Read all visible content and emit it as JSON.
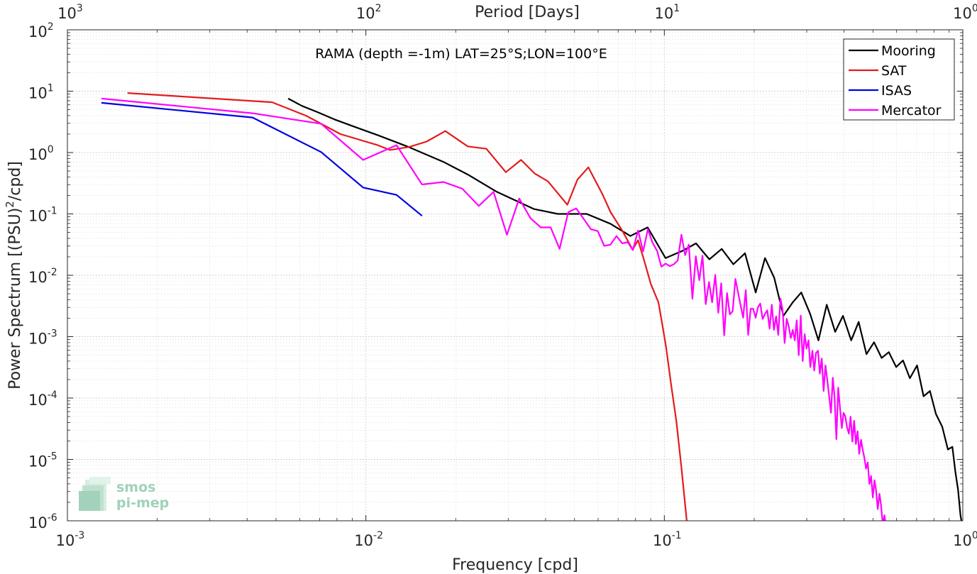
{
  "chart_data": {
    "type": "line",
    "title": "RAMA (depth =-1m) LAT=25°S;LON=100°E",
    "xlabel": "Frequency [cpd]",
    "ylabel": "Power Spectrum [(PSU)",
    "ylabel_sup": "2",
    "ylabel_suffix": "/cpd]",
    "top_xlabel": "Period [Days]",
    "xscale": "log",
    "yscale": "log",
    "xlim": [
      0.001,
      1
    ],
    "ylim": [
      1e-06,
      100
    ],
    "grid": true,
    "minor_grid": true,
    "legend_position": "top-right",
    "x_ticks": [
      {
        "value": 0.001,
        "base": "10",
        "exp": "-3"
      },
      {
        "value": 0.01,
        "base": "10",
        "exp": "-2"
      },
      {
        "value": 0.1,
        "base": "10",
        "exp": "-1"
      },
      {
        "value": 1,
        "base": "10",
        "exp": "0"
      }
    ],
    "top_ticks": [
      {
        "value": 0.001,
        "base": "10",
        "exp": "3"
      },
      {
        "value": 0.01,
        "base": "10",
        "exp": "2"
      },
      {
        "value": 0.1,
        "base": "10",
        "exp": "1"
      },
      {
        "value": 1,
        "base": "10",
        "exp": "0"
      }
    ],
    "y_ticks": [
      {
        "value": 100,
        "base": "10",
        "exp": "2"
      },
      {
        "value": 10,
        "base": "10",
        "exp": "1"
      },
      {
        "value": 1,
        "base": "10",
        "exp": "0"
      },
      {
        "value": 0.1,
        "base": "10",
        "exp": "-1"
      },
      {
        "value": 0.01,
        "base": "10",
        "exp": "-2"
      },
      {
        "value": 0.001,
        "base": "10",
        "exp": "-3"
      },
      {
        "value": 0.0001,
        "base": "10",
        "exp": "-4"
      },
      {
        "value": 1e-05,
        "base": "10",
        "exp": "-5"
      },
      {
        "value": 1e-06,
        "base": "10",
        "exp": "-6"
      }
    ],
    "series": [
      {
        "name": "Mooring",
        "color": "#000000",
        "points": [
          [
            0.00549,
            7.58
          ],
          [
            0.00611,
            5.75
          ],
          [
            0.00687,
            4.57
          ],
          [
            0.00785,
            3.47
          ],
          [
            0.00916,
            2.63
          ],
          [
            0.01099,
            1.91
          ],
          [
            0.01374,
            1.26
          ],
          [
            0.01832,
            0.692
          ],
          [
            0.02198,
            0.437
          ],
          [
            0.02748,
            0.229
          ],
          [
            0.03664,
            0.12
          ],
          [
            0.04396,
            0.1
          ],
          [
            0.05495,
            0.1
          ],
          [
            0.06593,
            0.0692
          ],
          [
            0.07692,
            0.0437
          ],
          [
            0.08791,
            0.0603
          ],
          [
            0.1009,
            0.0191
          ],
          [
            0.1152,
            0.0251
          ],
          [
            0.1277,
            0.0331
          ],
          [
            0.1415,
            0.0182
          ],
          [
            0.1557,
            0.0269
          ],
          [
            0.1703,
            0.0151
          ],
          [
            0.1863,
            0.0229
          ],
          [
            0.2024,
            0.00525
          ],
          [
            0.2174,
            0.0191
          ],
          [
            0.2334,
            0.00912
          ],
          [
            0.2507,
            0.00219
          ],
          [
            0.2692,
            0.00363
          ],
          [
            0.2876,
            0.00525
          ],
          [
            0.3081,
            0.00234
          ],
          [
            0.3282,
            0.00087
          ],
          [
            0.3499,
            0.00331
          ],
          [
            0.3735,
            0.0012
          ],
          [
            0.3968,
            0.00219
          ],
          [
            0.4227,
            0.00087
          ],
          [
            0.4477,
            0.00174
          ],
          [
            0.4755,
            0.00052
          ],
          [
            0.5042,
            0.00081
          ],
          [
            0.5347,
            0.00045
          ],
          [
            0.5651,
            0.00056
          ],
          [
            0.5981,
            0.00032
          ],
          [
            0.6304,
            0.00041
          ],
          [
            0.6649,
            0.00021
          ],
          [
            0.7027,
            0.00034
          ],
          [
            0.7387,
            0.000107
          ],
          [
            0.776,
            0.00013
          ],
          [
            0.8128,
            5.5e-05
          ],
          [
            0.8531,
            3.4e-05
          ],
          [
            0.8913,
            1.45e-05
          ],
          [
            0.9226,
            1.6e-05
          ],
          [
            0.9441,
            6.3e-06
          ],
          [
            0.9638,
            3.2e-06
          ],
          [
            0.9821,
            1.23e-06
          ],
          [
            1.0,
            7.4e-07
          ]
        ]
      },
      {
        "name": "SAT",
        "color": "#e41a1c",
        "points": [
          [
            0.00159,
            9.33
          ],
          [
            0.00485,
            6.61
          ],
          [
            0.00631,
            3.98
          ],
          [
            0.00822,
            2.0
          ],
          [
            0.01096,
            1.32
          ],
          [
            0.01203,
            1.1
          ],
          [
            0.01396,
            1.23
          ],
          [
            0.01598,
            1.51
          ],
          [
            0.01845,
            2.24
          ],
          [
            0.02194,
            1.26
          ],
          [
            0.02533,
            1.15
          ],
          [
            0.02944,
            0.479
          ],
          [
            0.03311,
            0.759
          ],
          [
            0.03673,
            0.457
          ],
          [
            0.04075,
            0.339
          ],
          [
            0.04732,
            0.141
          ],
          [
            0.05117,
            0.363
          ],
          [
            0.05562,
            0.575
          ],
          [
            0.06202,
            0.209
          ],
          [
            0.06607,
            0.107
          ],
          [
            0.07244,
            0.0525
          ],
          [
            0.07828,
            0.0263
          ],
          [
            0.08166,
            0.0372
          ],
          [
            0.08597,
            0.0162
          ],
          [
            0.09009,
            0.0072
          ],
          [
            0.09552,
            0.00363
          ],
          [
            0.09842,
            0.00159
          ],
          [
            0.10139,
            0.00066
          ],
          [
            0.10544,
            0.000162
          ],
          [
            0.10965,
            4.27e-05
          ],
          [
            0.11402,
            7.59e-06
          ],
          [
            0.11885,
            1e-06
          ],
          [
            0.12,
            6.9e-07
          ]
        ]
      },
      {
        "name": "ISAS",
        "color": "#0000e6",
        "points": [
          [
            0.0013,
            6.46
          ],
          [
            0.00417,
            3.72
          ],
          [
            0.00708,
            1.02
          ],
          [
            0.00979,
            0.269
          ],
          [
            0.01267,
            0.204
          ],
          [
            0.01542,
            0.093
          ]
        ]
      },
      {
        "name": "Mercator",
        "color": "#ff00ff",
        "points": [
          [
            0.0013,
            7.59
          ],
          [
            0.00417,
            4.37
          ],
          [
            0.00708,
            2.95
          ],
          [
            0.00979,
            0.759
          ],
          [
            0.01267,
            1.32
          ],
          [
            0.01542,
            0.302
          ],
          [
            0.01819,
            0.331
          ],
          [
            0.02105,
            0.257
          ],
          [
            0.02389,
            0.135
          ],
          [
            0.02678,
            0.229
          ],
          [
            0.02969,
            0.0457
          ],
          [
            0.03265,
            0.178
          ],
          [
            0.03561,
            0.0851
          ],
          [
            0.03856,
            0.0603
          ],
          [
            0.04159,
            0.0603
          ],
          [
            0.04457,
            0.0269
          ],
          [
            0.04764,
            0.107
          ],
          [
            0.05064,
            0.123
          ],
          [
            0.05366,
            0.0832
          ],
          [
            0.05674,
            0.0562
          ],
          [
            0.05983,
            0.0525
          ],
          [
            0.06289,
            0.0302
          ],
          [
            0.06601,
            0.0316
          ],
          [
            0.06914,
            0.0437
          ],
          [
            0.07227,
            0.0331
          ],
          [
            0.07539,
            0.0347
          ],
          [
            0.07845,
            0.0257
          ],
          [
            0.08167,
            0.0537
          ],
          [
            0.0849,
            0.0245
          ],
          [
            0.08807,
            0.0562
          ],
          [
            0.09128,
            0.0339
          ],
          [
            0.09453,
            0.0251
          ],
          [
            0.09772,
            0.0138
          ],
          [
            0.10101,
            0.0155
          ],
          [
            0.10425,
            0.0141
          ],
          [
            0.10755,
            0.0151
          ],
          [
            0.11086,
            0.0174
          ],
          [
            0.11409,
            0.0457
          ],
          [
            0.11736,
            0.0213
          ],
          [
            0.12078,
            0.0316
          ],
          [
            0.12415,
            0.00417
          ],
          [
            0.12752,
            0.0204
          ],
          [
            0.13092,
            0.00832
          ],
          [
            0.13423,
            0.0209
          ],
          [
            0.13764,
            0.00339
          ],
          [
            0.14116,
            0.00776
          ],
          [
            0.14462,
            0.00363
          ],
          [
            0.14812,
            0.0102
          ],
          [
            0.15161,
            0.00245
          ],
          [
            0.1551,
            0.00741
          ],
          [
            0.15867,
            0.00105
          ],
          [
            0.16218,
            0.00513
          ],
          [
            0.16579,
            0.0023
          ],
          [
            0.16937,
            0.0026
          ],
          [
            0.17298,
            0.00871
          ],
          [
            0.17659,
            0.00525
          ],
          [
            0.18009,
            0.00324
          ],
          [
            0.18365,
            0.00204
          ],
          [
            0.18738,
            0.00575
          ],
          [
            0.19098,
            0.00107
          ],
          [
            0.19466,
            0.00285
          ],
          [
            0.19843,
            0.00285
          ],
          [
            0.20226,
            0.00204
          ],
          [
            0.20592,
            0.00302
          ],
          [
            0.20962,
            0.00347
          ],
          [
            0.21349,
            0.00194
          ],
          [
            0.21727,
            0.00234
          ],
          [
            0.2212,
            0.00269
          ],
          [
            0.22521,
            0.00135
          ],
          [
            0.22908,
            0.00331
          ],
          [
            0.23291,
            0.00129
          ],
          [
            0.23694,
            0.00214
          ],
          [
            0.24082,
            0.00107
          ],
          [
            0.24498,
            0.00417
          ],
          [
            0.24896,
            0.0027
          ],
          [
            0.25297,
            0.00079
          ],
          [
            0.25704,
            0.00195
          ],
          [
            0.26107,
            0.00148
          ],
          [
            0.26529,
            0.00095
          ],
          [
            0.26927,
            0.00129
          ],
          [
            0.27353,
            0.00087
          ],
          [
            0.27759,
            0.00185
          ],
          [
            0.28204,
            0.0005
          ],
          [
            0.28647,
            0.0022
          ],
          [
            0.29067,
            0.0004
          ],
          [
            0.29515,
            0.0011
          ],
          [
            0.2995,
            0.00064
          ],
          [
            0.30413,
            0.00087
          ],
          [
            0.3085,
            0.00032
          ],
          [
            0.31333,
            0.00059
          ],
          [
            0.31788,
            0.00028
          ],
          [
            0.32226,
            0.00054
          ],
          [
            0.32719,
            0.00059
          ],
          [
            0.33191,
            0.00025
          ],
          [
            0.33684,
            0.00044
          ],
          [
            0.34175,
            0.00013
          ],
          [
            0.34655,
            0.00034
          ],
          [
            0.35157,
            0.000195
          ],
          [
            0.35677,
            0.000105
          ],
          [
            0.36176,
            5.75e-05
          ],
          [
            0.36687,
            0.000214
          ],
          [
            0.37196,
            0.000102
          ],
          [
            0.37713,
            2.14e-05
          ],
          [
            0.38253,
            0.000148
          ],
          [
            0.38764,
            6.92e-05
          ],
          [
            0.39321,
            3.24e-05
          ],
          [
            0.39856,
            5.75e-05
          ],
          [
            0.40398,
            5.01e-05
          ],
          [
            0.40954,
            3.31e-05
          ],
          [
            0.41511,
            2.63e-05
          ],
          [
            0.42068,
            4.98e-05
          ],
          [
            0.42661,
            1.95e-05
          ],
          [
            0.43231,
            4.26e-05
          ],
          [
            0.43828,
            1.78e-05
          ],
          [
            0.44398,
            2.88e-05
          ],
          [
            0.44979,
            1.23e-05
          ],
          [
            0.45604,
            2.09e-05
          ],
          [
            0.46167,
            1.45e-05
          ],
          [
            0.46774,
            1.07e-05
          ],
          [
            0.47399,
            7.08e-06
          ],
          [
            0.48031,
            8.91e-06
          ],
          [
            0.48637,
            3.98e-06
          ],
          [
            0.49274,
            5.37e-06
          ],
          [
            0.49954,
            2.4e-06
          ],
          [
            0.50582,
            4.57e-06
          ],
          [
            0.51214,
            3.16e-06
          ],
          [
            0.5189,
            1.55e-06
          ],
          [
            0.52555,
            2.75e-06
          ],
          [
            0.53234,
            1.78e-06
          ],
          [
            0.53928,
            8.5e-07
          ],
          [
            0.54611,
            1.23e-06
          ],
          [
            0.55335,
            8e-07
          ]
        ]
      }
    ]
  },
  "watermark": {
    "line1": "smos",
    "line2": "pi-mep"
  }
}
